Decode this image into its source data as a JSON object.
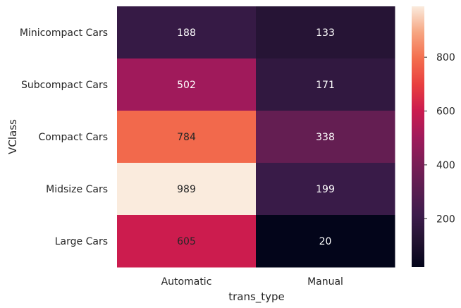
{
  "chart_data": {
    "type": "heatmap",
    "title": "",
    "xlabel": "trans_type",
    "ylabel": "VClass",
    "x_categories": [
      "Automatic",
      "Manual"
    ],
    "y_categories": [
      "Minicompact Cars",
      "Subcompact Cars",
      "Compact Cars",
      "Midsize Cars",
      "Large Cars"
    ],
    "values": [
      [
        188,
        133
      ],
      [
        502,
        171
      ],
      [
        784,
        338
      ],
      [
        989,
        199
      ],
      [
        605,
        20
      ]
    ],
    "cell_labels": [
      [
        "188",
        "133"
      ],
      [
        "502",
        "171"
      ],
      [
        "784",
        "338"
      ],
      [
        "989",
        "199"
      ],
      [
        "605",
        "20"
      ]
    ],
    "colormap": "rocket",
    "vmin": 20,
    "vmax": 989,
    "colorbar": {
      "ticks": [
        200,
        400,
        600,
        800
      ],
      "tick_labels": [
        "200",
        "400",
        "600",
        "800"
      ]
    },
    "grid": false,
    "legend": "colorbar-right"
  }
}
